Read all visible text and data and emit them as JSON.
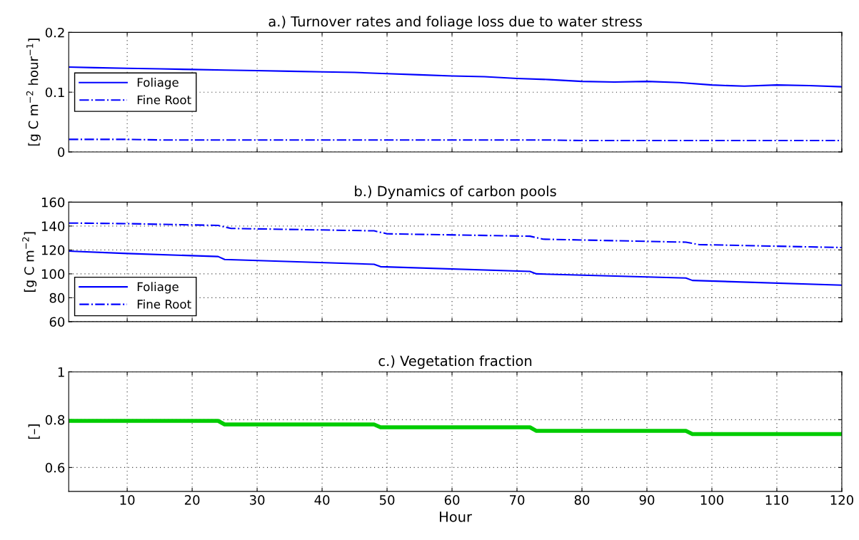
{
  "chart_data": [
    {
      "type": "line",
      "title": "a.) Turnover rates and foliage loss due to water stress",
      "ylabel": "[g C m$^{−2}$ hour$^{−1}$]",
      "xlim": [
        1,
        120
      ],
      "xticks": [
        10,
        20,
        30,
        40,
        50,
        60,
        70,
        80,
        90,
        100,
        110,
        120
      ],
      "ylim": [
        0,
        0.2
      ],
      "yticks": [
        0,
        0.1,
        0.2
      ],
      "grid": true,
      "legend": "left",
      "tick_labels": "y",
      "x": [
        1,
        5,
        10,
        15,
        20,
        25,
        30,
        35,
        40,
        45,
        50,
        55,
        60,
        65,
        70,
        75,
        80,
        85,
        90,
        95,
        100,
        105,
        110,
        115,
        120
      ],
      "series": [
        {
          "name": "Foliage",
          "color": "#0000ff",
          "line_style": "solid",
          "values": [
            0.142,
            0.141,
            0.14,
            0.139,
            0.138,
            0.137,
            0.136,
            0.135,
            0.134,
            0.133,
            0.131,
            0.129,
            0.127,
            0.126,
            0.123,
            0.121,
            0.118,
            0.117,
            0.118,
            0.116,
            0.112,
            0.11,
            0.112,
            0.111,
            0.109
          ]
        },
        {
          "name": "Fine Root",
          "color": "#0000ff",
          "line_style": "dashdot",
          "values": [
            0.021,
            0.021,
            0.021,
            0.02,
            0.02,
            0.02,
            0.02,
            0.02,
            0.02,
            0.02,
            0.02,
            0.02,
            0.02,
            0.02,
            0.02,
            0.02,
            0.019,
            0.019,
            0.019,
            0.019,
            0.019,
            0.019,
            0.019,
            0.019,
            0.019
          ]
        }
      ]
    },
    {
      "type": "line",
      "title": "b.) Dynamics of carbon pools",
      "ylabel": "[g C m$^{−2}$]",
      "xlim": [
        1,
        120
      ],
      "xticks": [
        10,
        20,
        30,
        40,
        50,
        60,
        70,
        80,
        90,
        100,
        110,
        120
      ],
      "ylim": [
        60,
        160
      ],
      "yticks": [
        60,
        80,
        100,
        120,
        140,
        160
      ],
      "grid": true,
      "legend": "bottom left",
      "tick_labels": "y",
      "series": [
        {
          "name": "Foliage",
          "color": "#0000ff",
          "line_style": "solid",
          "x": [
            1,
            10,
            24,
            25,
            48,
            49,
            72,
            73,
            96,
            97,
            120
          ],
          "values": [
            119,
            117,
            114.5,
            112,
            108,
            106,
            102,
            100,
            96.5,
            94.5,
            90.5
          ]
        },
        {
          "name": "Fine Root",
          "color": "#0000ff",
          "line_style": "dashdot",
          "x": [
            1,
            10,
            24,
            26,
            48,
            50,
            72,
            74,
            96,
            98,
            120
          ],
          "values": [
            142.5,
            142,
            140.5,
            138,
            136,
            133.5,
            131.5,
            129,
            126.5,
            124.5,
            122
          ]
        }
      ]
    },
    {
      "type": "line",
      "title": "c.) Vegetation fraction",
      "ylabel": "[–]",
      "xlabel": "Hour",
      "xlim": [
        1,
        120
      ],
      "xticks": [
        10,
        20,
        30,
        40,
        50,
        60,
        70,
        80,
        90,
        100,
        110,
        120
      ],
      "ylim": [
        0.5,
        1
      ],
      "yticks": [
        0.6,
        0.8,
        1
      ],
      "grid": true,
      "series": [
        {
          "color": "#00cc00",
          "line_style": "solid",
          "x": [
            1,
            24,
            25,
            48,
            49,
            72,
            73,
            96,
            97,
            120
          ],
          "values": [
            0.795,
            0.795,
            0.78,
            0.78,
            0.768,
            0.768,
            0.753,
            0.753,
            0.74,
            0.74
          ]
        }
      ]
    }
  ]
}
